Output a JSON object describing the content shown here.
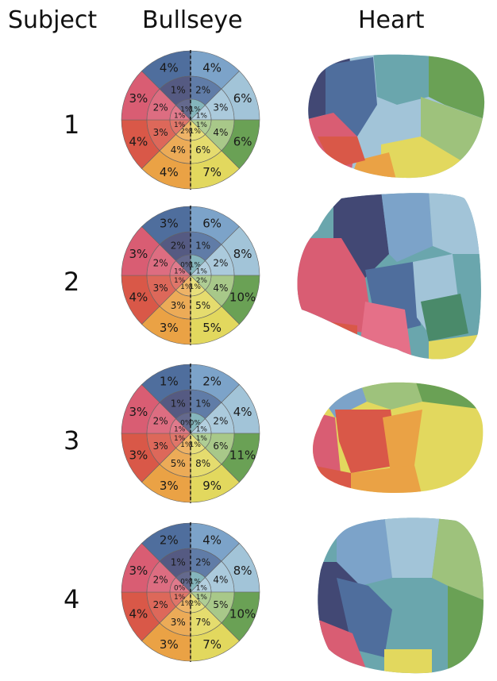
{
  "headers": {
    "subject": "Subject",
    "bullseye": "Bullseye",
    "heart": "Heart"
  },
  "colors": {
    "s1": "#7ca3c9",
    "s2": "#a2c4d8",
    "s3": "#6aa155",
    "s4": "#e2d85e",
    "s5": "#eaa245",
    "s6": "#d95848",
    "s7": "#d95d73",
    "s8": "#9c8fc0",
    "s9": "#424874",
    "s10": "#4f6e9d",
    "s11": "#6aa6ad",
    "s12": "#9ec27c",
    "outline": "#666666",
    "divider": "#111111"
  },
  "subjects": [
    {
      "id": "1",
      "outer": [
        "4%",
        "6%",
        "6%",
        "7%",
        "4%",
        "4%",
        "3%",
        "4%"
      ],
      "mid": [
        "2%",
        "3%",
        "4%",
        "6%",
        "4%",
        "3%",
        "2%",
        "1%"
      ],
      "inner": [
        "1%",
        "1%",
        "1%",
        "1%",
        "2%",
        "1%",
        "1%",
        "1%"
      ]
    },
    {
      "id": "2",
      "outer": [
        "6%",
        "8%",
        "10%",
        "5%",
        "3%",
        "4%",
        "3%",
        "3%"
      ],
      "mid": [
        "1%",
        "2%",
        "4%",
        "5%",
        "3%",
        "3%",
        "2%",
        "2%"
      ],
      "inner": [
        "1%",
        "1%",
        "2%",
        "1%",
        "1%",
        "1%",
        "1%",
        "0%"
      ]
    },
    {
      "id": "3",
      "outer": [
        "2%",
        "4%",
        "11%",
        "9%",
        "3%",
        "3%",
        "3%",
        "1%"
      ],
      "mid": [
        "1%",
        "2%",
        "6%",
        "8%",
        "5%",
        "3%",
        "2%",
        "1%"
      ],
      "inner": [
        "0%",
        "1%",
        "1%",
        "1%",
        "1%",
        "1%",
        "1%",
        "0%"
      ]
    },
    {
      "id": "4",
      "outer": [
        "4%",
        "8%",
        "10%",
        "7%",
        "3%",
        "4%",
        "3%",
        "2%"
      ],
      "mid": [
        "2%",
        "4%",
        "5%",
        "7%",
        "3%",
        "2%",
        "2%",
        "1%"
      ],
      "inner": [
        "1%",
        "1%",
        "1%",
        "2%",
        "1%",
        "1%",
        "0%",
        "0%"
      ]
    }
  ]
}
